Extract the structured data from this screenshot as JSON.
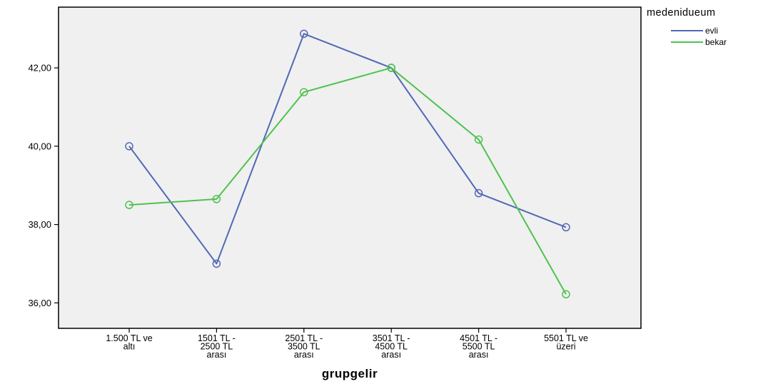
{
  "chart_data": {
    "type": "line",
    "title": "",
    "xlabel": "grupgelir",
    "ylabel": "",
    "categories": [
      [
        "1.500 TL ve",
        "altı"
      ],
      [
        "1501 TL -",
        "2500 TL",
        "arası"
      ],
      [
        "2501 TL -",
        "3500 TL",
        "arası"
      ],
      [
        "3501 TL -",
        "4500 TL",
        "arası"
      ],
      [
        "4501 TL -",
        "5500 TL",
        "arası"
      ],
      [
        "5501 TL ve",
        "üzeri"
      ]
    ],
    "yticks": [
      "36,00",
      "38,00",
      "40,00",
      "42,00"
    ],
    "ylim": [
      35.35,
      43.55
    ],
    "grid": false,
    "background": "#f0f0f0",
    "legend": {
      "title": "medenidueum",
      "position": "top-right"
    },
    "series": [
      {
        "name": "evli",
        "color": "#5068b6",
        "values": [
          40.0,
          37.0,
          42.87,
          42.0,
          38.8,
          37.93
        ]
      },
      {
        "name": "bekar",
        "color": "#4ec24e",
        "values": [
          38.5,
          38.65,
          41.38,
          42.0,
          40.17,
          36.22
        ]
      }
    ]
  }
}
